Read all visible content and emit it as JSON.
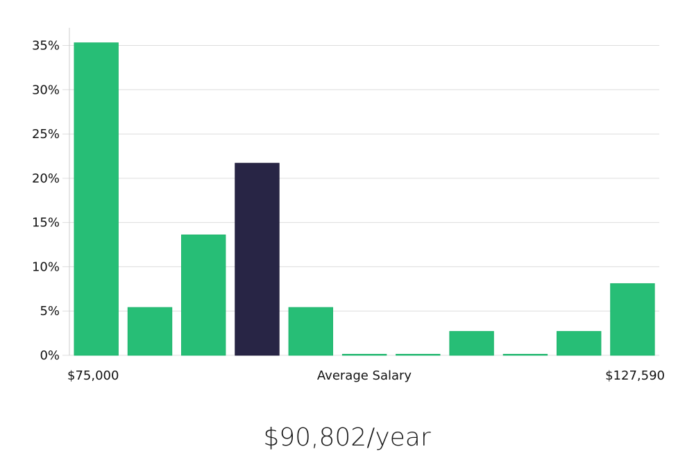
{
  "chart_data": {
    "type": "bar",
    "ylim": [
      0,
      37
    ],
    "yticks": [
      0,
      5,
      10,
      15,
      20,
      25,
      30,
      35
    ],
    "ytick_format": "%",
    "grid": true,
    "values": [
      35.3,
      5.4,
      13.6,
      21.7,
      5.4,
      0,
      0,
      2.7,
      0,
      2.7,
      8.1
    ],
    "highlight_index": 3,
    "colors": {
      "bar": "#27be76",
      "bar_edge": "#1fb56c",
      "highlight": "#282545",
      "grid": "#dddddd",
      "axis": "#cccccc"
    },
    "x_labels": {
      "left": "$75,000",
      "center": "Average Salary",
      "right": "$127,590"
    }
  },
  "salary_text": "$90,802/year"
}
